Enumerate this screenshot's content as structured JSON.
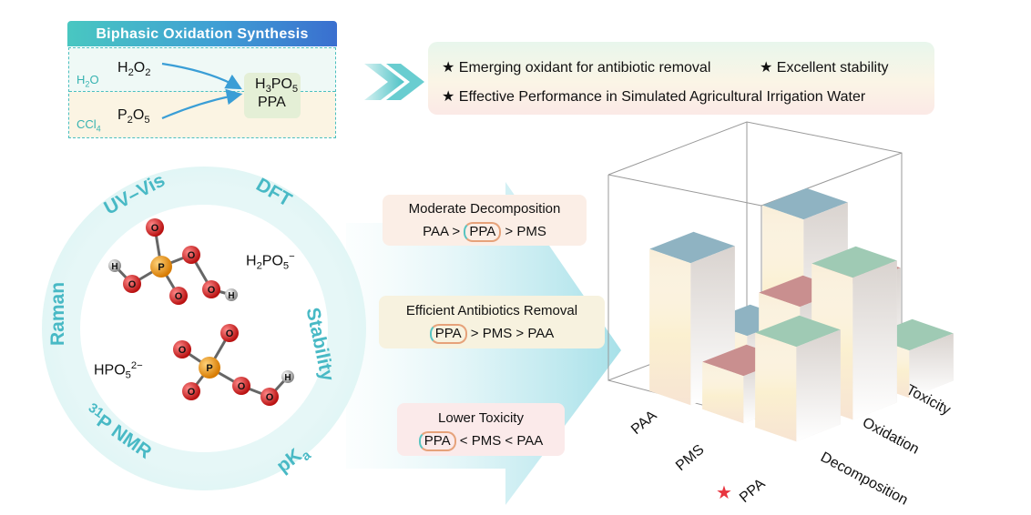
{
  "synthesis": {
    "title": "Biphasic Oxidation Synthesis",
    "water_phase": "H2O",
    "organic_phase": "CCl4",
    "reactant_top": "H2O2",
    "reactant_bottom": "P2O5",
    "product_formula": "H3PO5",
    "product_abbr": "PPA"
  },
  "highlights": [
    "Emerging oxidant for antibiotic removal",
    "Excellent stability",
    "Effective Performance in Simulated Agricultural Irrigation Water"
  ],
  "characterization": {
    "methods": [
      "UV–Vis",
      "DFT",
      "Stability",
      "pKa",
      "31P NMR",
      "Raman"
    ],
    "species": [
      "H2PO5−",
      "HPO5 2−"
    ]
  },
  "properties": [
    {
      "title": "Moderate Decomposition",
      "order": [
        "PAA",
        ">",
        "PPA",
        ">",
        "PMS"
      ],
      "highlight": "PPA"
    },
    {
      "title": "Efficient Antibiotics Removal",
      "order": [
        "PPA",
        ">",
        "PMS",
        ">",
        "PAA"
      ],
      "highlight": "PPA"
    },
    {
      "title": "Lower Toxicity",
      "order": [
        "PPA",
        "<",
        "PMS",
        "<",
        "PAA"
      ],
      "highlight": "PPA"
    }
  ],
  "chart_data": {
    "type": "bar3d",
    "x_categories": [
      "PAA",
      "PMS",
      "PPA"
    ],
    "y_categories": [
      "Decomposition",
      "Oxidation",
      "Toxicity"
    ],
    "highlighted_category": "PPA",
    "values": [
      {
        "oxidant": "PAA",
        "Decomposition": 3,
        "Oxidation": 1,
        "Toxicity": 3
      },
      {
        "oxidant": "PMS",
        "Decomposition": 1,
        "Oxidation": 2,
        "Toxicity": 2
      },
      {
        "oxidant": "PPA",
        "Decomposition": 2,
        "Oxidation": 3,
        "Toxicity": 1
      }
    ],
    "colors": {
      "PAA": "#8fb3c2",
      "PMS": "#c98f8f",
      "PPA": "#9fcab4",
      "highlight_star": "#e8353f"
    }
  }
}
